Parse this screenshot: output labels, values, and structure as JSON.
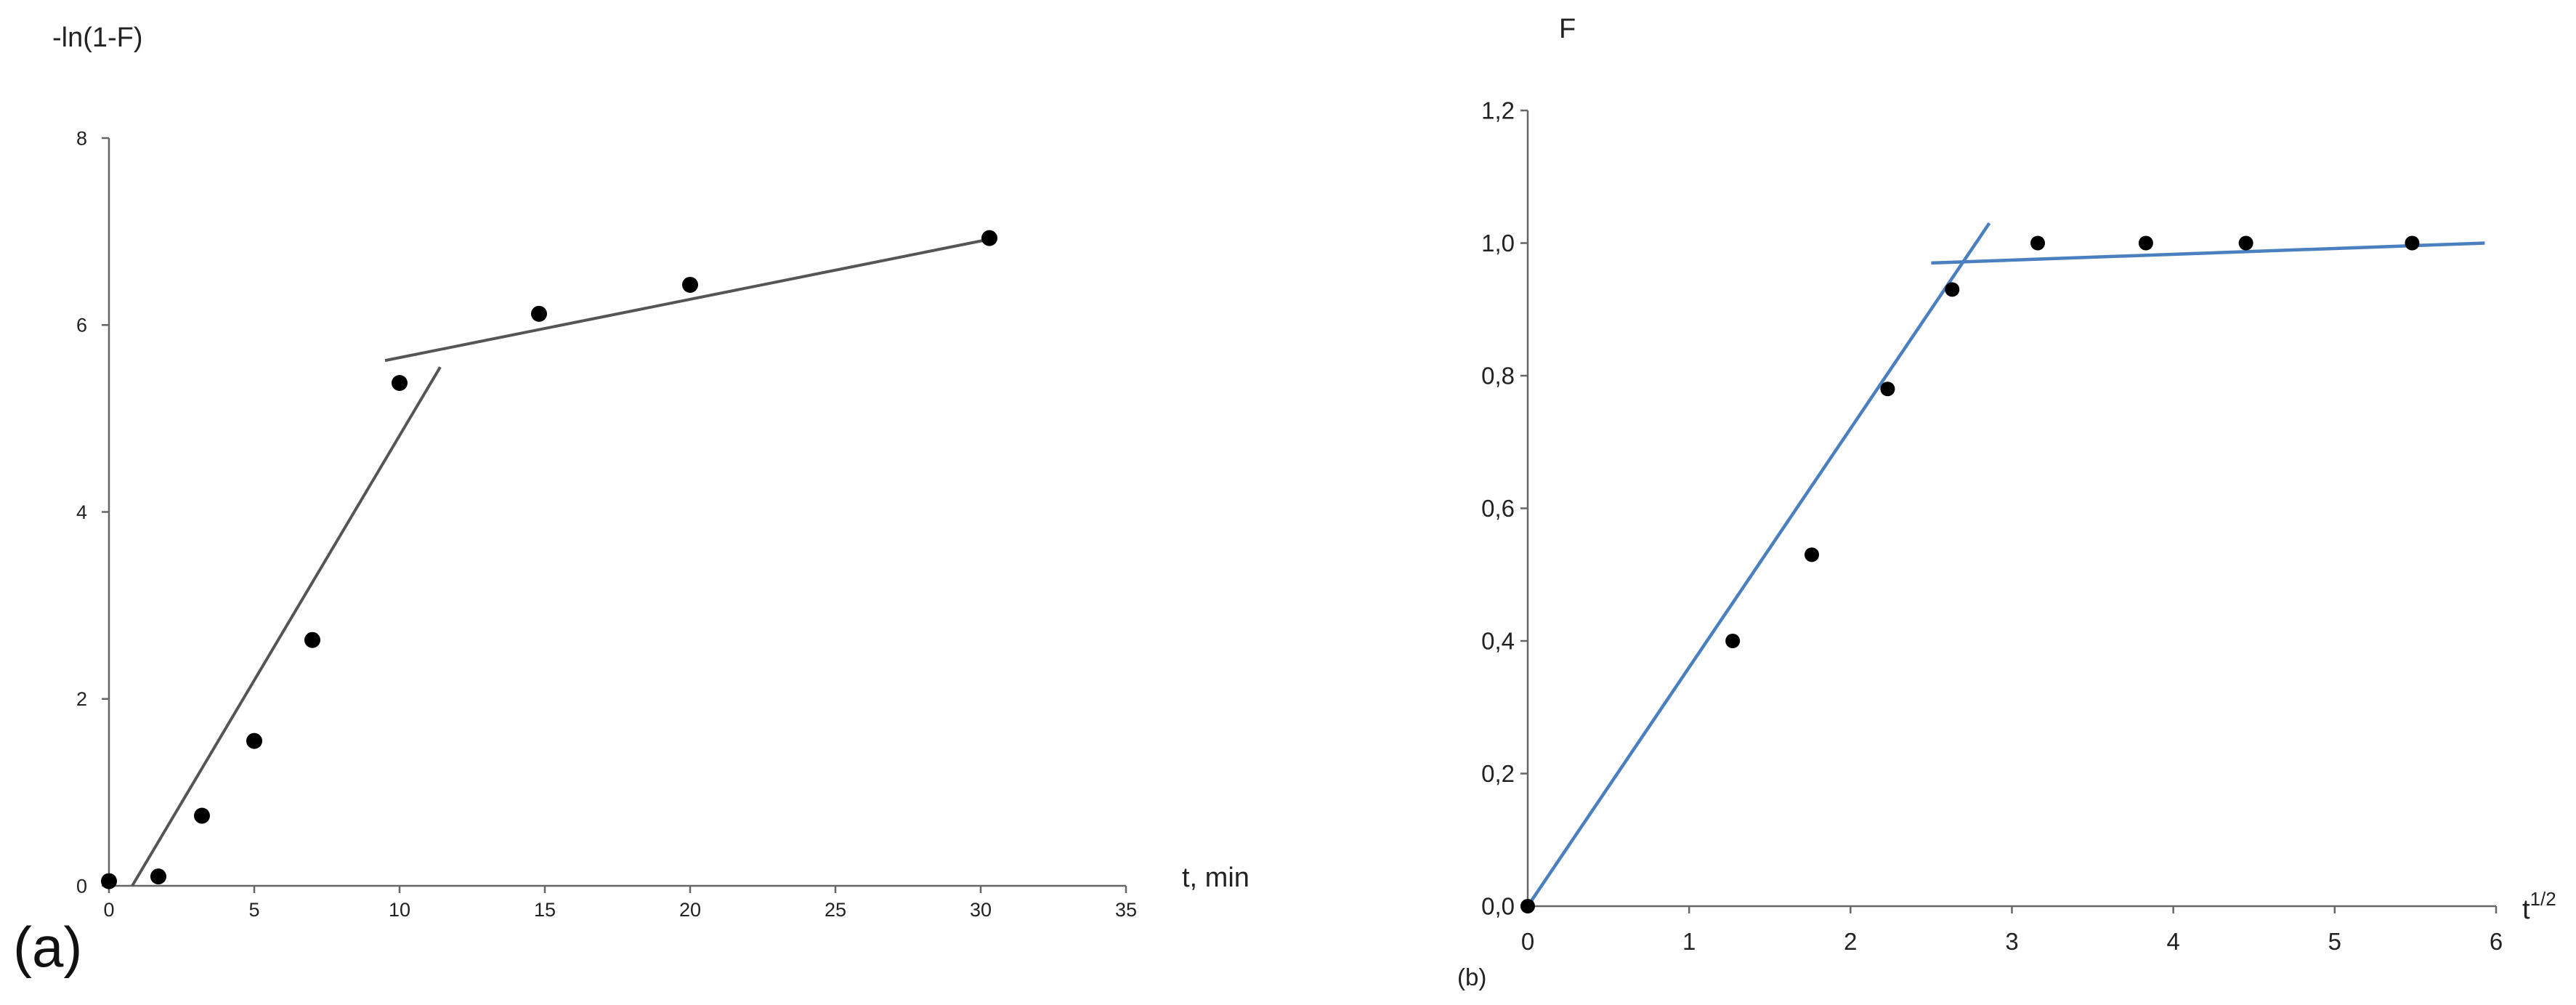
{
  "chart_data": [
    {
      "panel_label": "(a)",
      "type": "scatter",
      "ylabel": "-ln(1-F)",
      "xlabel": "t, min",
      "xlim": [
        0,
        35
      ],
      "ylim": [
        0,
        8
      ],
      "xticks": [
        "0",
        "5",
        "10",
        "15",
        "20",
        "25",
        "30",
        "35"
      ],
      "yticks": [
        "0",
        "2",
        "4",
        "6",
        "8"
      ],
      "points": [
        {
          "x": 0,
          "y": 0.05
        },
        {
          "x": 1.7,
          "y": 0.1
        },
        {
          "x": 3.2,
          "y": 0.75
        },
        {
          "x": 5,
          "y": 1.55
        },
        {
          "x": 7,
          "y": 2.63
        },
        {
          "x": 10,
          "y": 5.38
        },
        {
          "x": 14.8,
          "y": 6.12
        },
        {
          "x": 20,
          "y": 6.43
        },
        {
          "x": 30.3,
          "y": 6.93
        }
      ],
      "fit_lines": [
        {
          "x": [
            0.8,
            11.4
          ],
          "y": [
            0,
            5.55
          ]
        },
        {
          "x": [
            9.5,
            30.5
          ],
          "y": [
            5.62,
            6.93
          ]
        }
      ],
      "colors": {
        "marker": "#000000",
        "line": "#555555",
        "axis": "#666666"
      },
      "grid": false
    },
    {
      "panel_label": "(b)",
      "type": "scatter",
      "ylabel": "F",
      "xlabel": "t",
      "xlabel_sup": "1/2",
      "xlim": [
        0,
        6
      ],
      "ylim": [
        0,
        1.2
      ],
      "xticks": [
        "0",
        "1",
        "2",
        "3",
        "4",
        "5",
        "6"
      ],
      "yticks": [
        "0,0",
        "0,2",
        "0,4",
        "0,6",
        "0,8",
        "1,0",
        "1,2"
      ],
      "points": [
        {
          "x": 0,
          "y": 0
        },
        {
          "x": 1.27,
          "y": 0.4
        },
        {
          "x": 1.76,
          "y": 0.53
        },
        {
          "x": 2.23,
          "y": 0.78
        },
        {
          "x": 2.63,
          "y": 0.93
        },
        {
          "x": 3.16,
          "y": 1.0
        },
        {
          "x": 3.83,
          "y": 1.0
        },
        {
          "x": 4.45,
          "y": 1.0
        },
        {
          "x": 5.48,
          "y": 1.0
        }
      ],
      "fit_lines": [
        {
          "x": [
            0,
            2.86
          ],
          "y": [
            0,
            1.03
          ]
        },
        {
          "x": [
            2.5,
            5.93
          ],
          "y": [
            0.97,
            1.0
          ]
        }
      ],
      "colors": {
        "marker": "#000000",
        "line": "#4a7fc0",
        "axis": "#666666"
      },
      "grid": false
    }
  ]
}
